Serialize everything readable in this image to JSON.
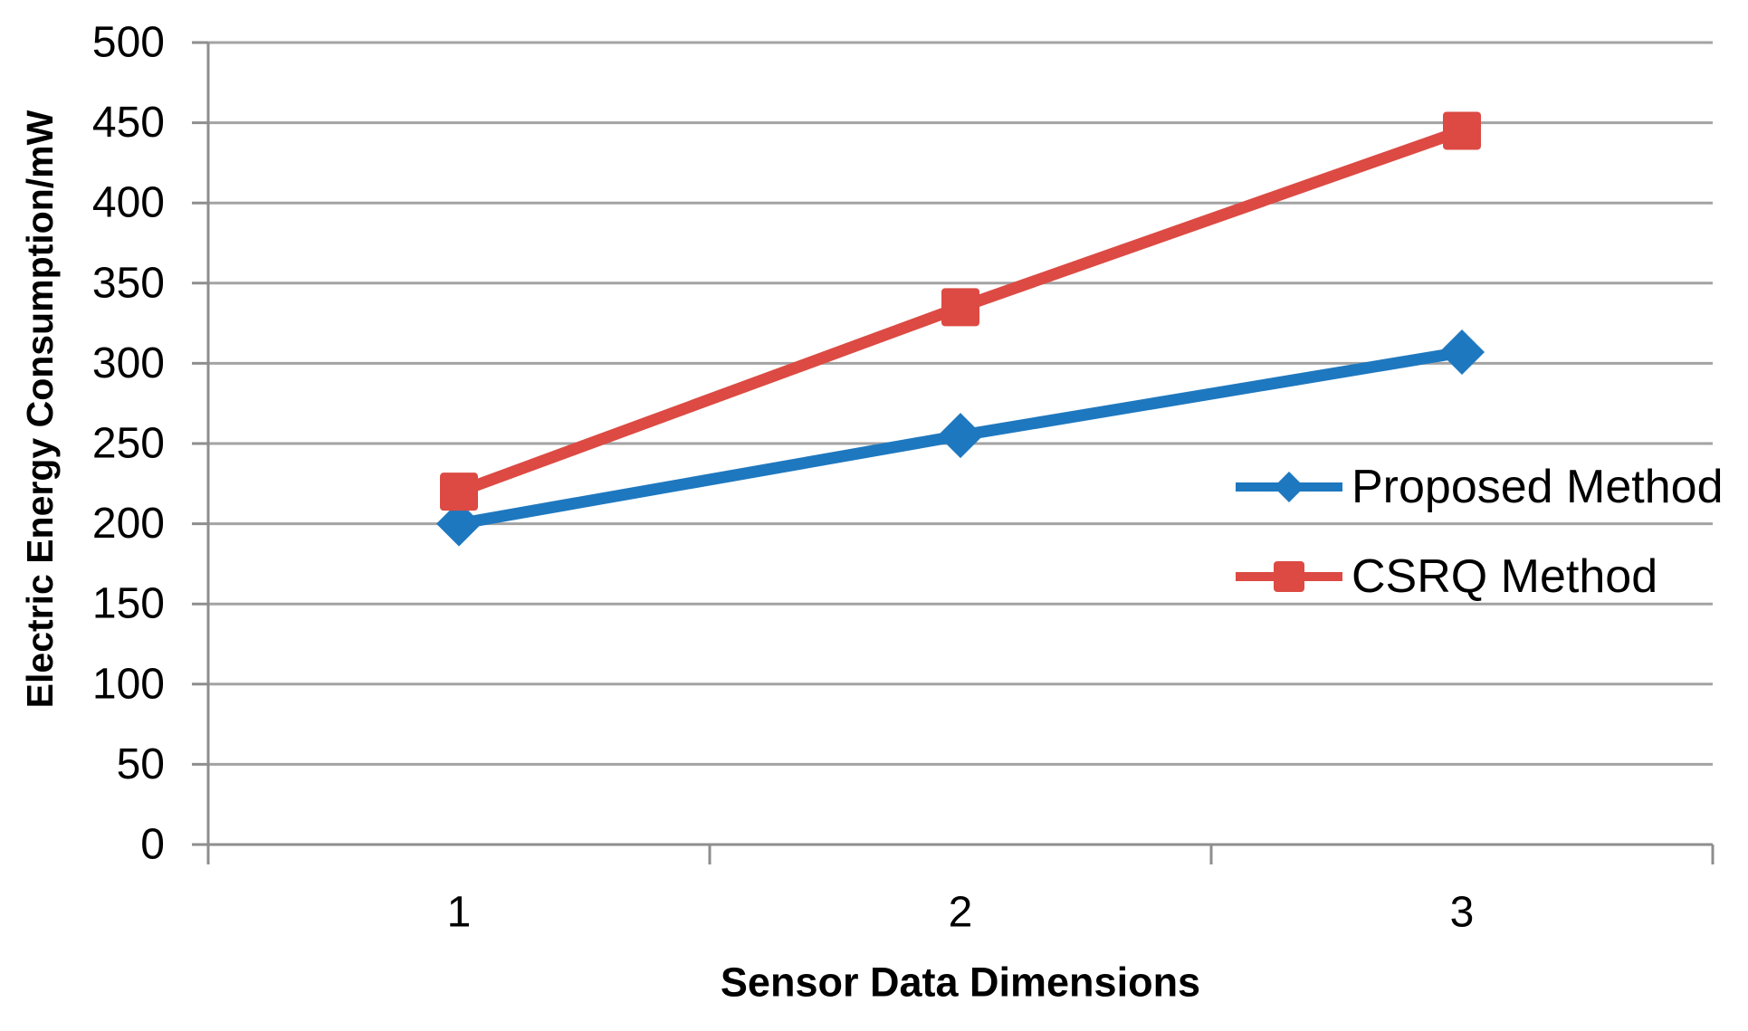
{
  "figure": {
    "background": "#FFFFFF"
  },
  "chart_data": {
    "type": "line",
    "title": "",
    "xlabel": "Sensor Data Dimensions",
    "ylabel": "Electric Energy Consumption/mW",
    "categories": [
      "1",
      "2",
      "3"
    ],
    "series": [
      {
        "name": "Proposed Method",
        "marker": "diamond",
        "color": "#1E78BF",
        "values": [
          200,
          255,
          307
        ]
      },
      {
        "name": "CSRQ Method",
        "marker": "square",
        "color": "#DC4A43",
        "values": [
          220,
          335,
          445
        ]
      }
    ],
    "ylim": [
      0,
      500
    ],
    "ytick_step": 50,
    "yticks": [
      "0",
      "50",
      "100",
      "150",
      "200",
      "250",
      "300",
      "350",
      "400",
      "450",
      "500"
    ],
    "grid": true,
    "legend_position": "inside-right-middle",
    "colors": {
      "gridline": "#A3A3A3",
      "axis": "#8E8E8E",
      "text": "#000000",
      "background": "#FFFFFF"
    }
  }
}
